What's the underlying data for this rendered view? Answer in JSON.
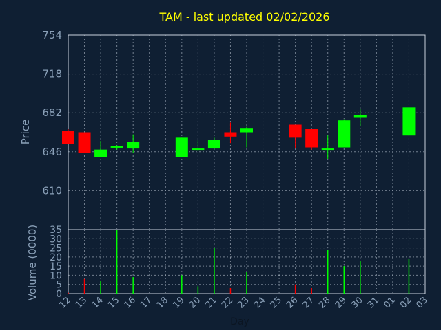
{
  "chart_data": [
    {
      "type": "candlestick",
      "title": "TAM - last updated 02/02/2026",
      "ylabel": "Price",
      "ylim": [
        574,
        754
      ],
      "yticks": [
        "754",
        "718",
        "682",
        "646",
        "610"
      ],
      "xticks": [
        "12",
        "13",
        "14",
        "15",
        "16",
        "17",
        "18",
        "19",
        "20",
        "21",
        "22",
        "23",
        "24",
        "25",
        "26",
        "27",
        "28",
        "29",
        "30",
        "31",
        "01",
        "02",
        "03"
      ],
      "up_color": "#00ff00",
      "down_color": "#ff0000",
      "grid": true,
      "candles": [
        {
          "day": "12",
          "open": 665,
          "high": 667,
          "low": 653,
          "close": 653
        },
        {
          "day": "13",
          "open": 664,
          "high": 664,
          "low": 645,
          "close": 645
        },
        {
          "day": "14",
          "open": 641,
          "high": 656,
          "low": 641,
          "close": 648
        },
        {
          "day": "15",
          "open": 650,
          "high": 652,
          "low": 648,
          "close": 651
        },
        {
          "day": "16",
          "open": 649,
          "high": 662,
          "low": 645,
          "close": 655
        },
        {
          "day": "19",
          "open": 641,
          "high": 659,
          "low": 641,
          "close": 659
        },
        {
          "day": "20",
          "open": 648,
          "high": 657,
          "low": 647,
          "close": 649
        },
        {
          "day": "21",
          "open": 649,
          "high": 659,
          "low": 649,
          "close": 657
        },
        {
          "day": "22",
          "open": 664,
          "high": 673,
          "low": 654,
          "close": 660
        },
        {
          "day": "23",
          "open": 664,
          "high": 669,
          "low": 650,
          "close": 668
        },
        {
          "day": "26",
          "open": 671,
          "high": 671,
          "low": 649,
          "close": 659
        },
        {
          "day": "27",
          "open": 667,
          "high": 667,
          "low": 648,
          "close": 650
        },
        {
          "day": "28",
          "open": 648,
          "high": 661,
          "low": 639,
          "close": 649
        },
        {
          "day": "29",
          "open": 650,
          "high": 676,
          "low": 650,
          "close": 675
        },
        {
          "day": "30",
          "open": 678,
          "high": 686,
          "low": 670,
          "close": 680
        },
        {
          "day": "02",
          "open": 661,
          "high": 687,
          "low": 661,
          "close": 687
        }
      ]
    },
    {
      "type": "bar",
      "ylabel": "Volume (0000)",
      "xlabel": "Day",
      "ylim": [
        0,
        35
      ],
      "yticks": [
        "35",
        "30",
        "25",
        "20",
        "15",
        "10",
        "5",
        "0"
      ],
      "volumes": [
        {
          "day": "12",
          "value": 0.5,
          "color": "#ff0000"
        },
        {
          "day": "13",
          "value": 8,
          "color": "#ff0000"
        },
        {
          "day": "14",
          "value": 7,
          "color": "#00ff00"
        },
        {
          "day": "15",
          "value": 35,
          "color": "#00ff00"
        },
        {
          "day": "16",
          "value": 9,
          "color": "#00ff00"
        },
        {
          "day": "19",
          "value": 10,
          "color": "#00ff00"
        },
        {
          "day": "20",
          "value": 4,
          "color": "#00ff00"
        },
        {
          "day": "21",
          "value": 25,
          "color": "#00ff00"
        },
        {
          "day": "22",
          "value": 3,
          "color": "#ff0000"
        },
        {
          "day": "23",
          "value": 12,
          "color": "#00ff00"
        },
        {
          "day": "26",
          "value": 5,
          "color": "#ff0000"
        },
        {
          "day": "27",
          "value": 3,
          "color": "#ff0000"
        },
        {
          "day": "28",
          "value": 24,
          "color": "#00ff00"
        },
        {
          "day": "29",
          "value": 15,
          "color": "#00ff00"
        },
        {
          "day": "30",
          "value": 18,
          "color": "#00ff00"
        },
        {
          "day": "02",
          "value": 19,
          "color": "#00ff00"
        }
      ]
    }
  ]
}
